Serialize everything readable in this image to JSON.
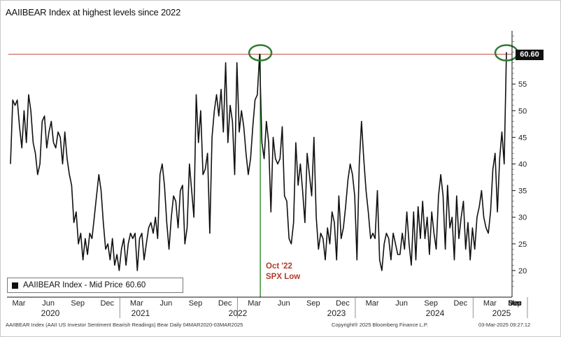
{
  "title": "AAIIBEAR Index at highest levels since 2022",
  "legend": {
    "label": "AAIIBEAR Index - Mid Price",
    "value": "60.60"
  },
  "annotation": {
    "line1": "Oct '22",
    "line2": "SPX Low"
  },
  "footer": {
    "left": "AAIIBEAR Index (AAII US Investor Sentiment Bearish Readings) Bear  Daily 04MAR2020-03MAR2025",
    "center": "Copyright® 2025 Bloomberg Finance L.P.",
    "right": "03-Mar-2025 09:27:12"
  },
  "colors": {
    "series": "#111111",
    "threshold_line": "#c8504a",
    "marker_line": "#2e8b2e",
    "circle": "#2e7d32",
    "annotation": "#b33a2a"
  },
  "chart_data": {
    "type": "line",
    "title": "AAIIBEAR Index at highest levels since 2022",
    "x_start": "2020-03",
    "x_step": "weekly",
    "ylim": [
      15,
      65
    ],
    "y_ticks": [
      "20",
      "25",
      "30",
      "35",
      "40",
      "45",
      "50",
      "55",
      "60.60"
    ],
    "y_axis_side": "right",
    "month_ticks": [
      "Mar",
      "Jun",
      "Sep",
      "Dec",
      "Mar",
      "Jun",
      "Sep",
      "Dec",
      "Mar",
      "Jun",
      "Sep",
      "Dec",
      "Mar",
      "Jun",
      "Sep",
      "Dec",
      "Mar",
      "Jun",
      "Sep",
      "Dec",
      "Mar"
    ],
    "year_labels": [
      "2020",
      "2021",
      "2022",
      "2023",
      "2024",
      "2025"
    ],
    "reference_line": {
      "value": 60.6,
      "label": "60.60"
    },
    "vertical_marker": {
      "date": "2022-10",
      "label": "Oct '22 SPX Low"
    },
    "circled_points": [
      "2022-10",
      "2025-03"
    ],
    "series": [
      {
        "name": "AAIIBEAR Index - Mid Price",
        "values": [
          40,
          52,
          51,
          52,
          47,
          43,
          50,
          44,
          53,
          50,
          44,
          42,
          38,
          40,
          48,
          49,
          43,
          46,
          48,
          44,
          43,
          46,
          45,
          40,
          46,
          41,
          38,
          36,
          29,
          31,
          25,
          27,
          22,
          26,
          23,
          27,
          26,
          30,
          34,
          38,
          35,
          29,
          24,
          25,
          22,
          26,
          21,
          23,
          20,
          24,
          26,
          21,
          25,
          27,
          26,
          27,
          20,
          26,
          27,
          22,
          25,
          28,
          29,
          27,
          30,
          26,
          38,
          40,
          36,
          29,
          24,
          30,
          34,
          33,
          28,
          35,
          36,
          25,
          28,
          40,
          35,
          30,
          53,
          44,
          50,
          38,
          39,
          42,
          27,
          45,
          50,
          53,
          49,
          54,
          46,
          59,
          44,
          51,
          48,
          38,
          59,
          46,
          50,
          47,
          42,
          38,
          41,
          47,
          52,
          53,
          60.6,
          44,
          41,
          48,
          44,
          31,
          45,
          41,
          40,
          41,
          47,
          34,
          33,
          26,
          25,
          29,
          44,
          36,
          40,
          35,
          29,
          42,
          38,
          34,
          45,
          30,
          24,
          27,
          26,
          22,
          28,
          25,
          31,
          29,
          22,
          34,
          26,
          28,
          32,
          37,
          40,
          38,
          34,
          22,
          40,
          48,
          41,
          35,
          31,
          26,
          27,
          26,
          35,
          22,
          20,
          25,
          27,
          26,
          22,
          27,
          25,
          23,
          23,
          27,
          24,
          31,
          25,
          21,
          31,
          22,
          32,
          26,
          33,
          26,
          30,
          23,
          31,
          27,
          24,
          34,
          38,
          34,
          24,
          36,
          28,
          30,
          22,
          34,
          26,
          30,
          33,
          24,
          29,
          22,
          28,
          24,
          30,
          32,
          35,
          30,
          28,
          27,
          31,
          39,
          42,
          31,
          41,
          46,
          40,
          61
        ]
      }
    ]
  }
}
